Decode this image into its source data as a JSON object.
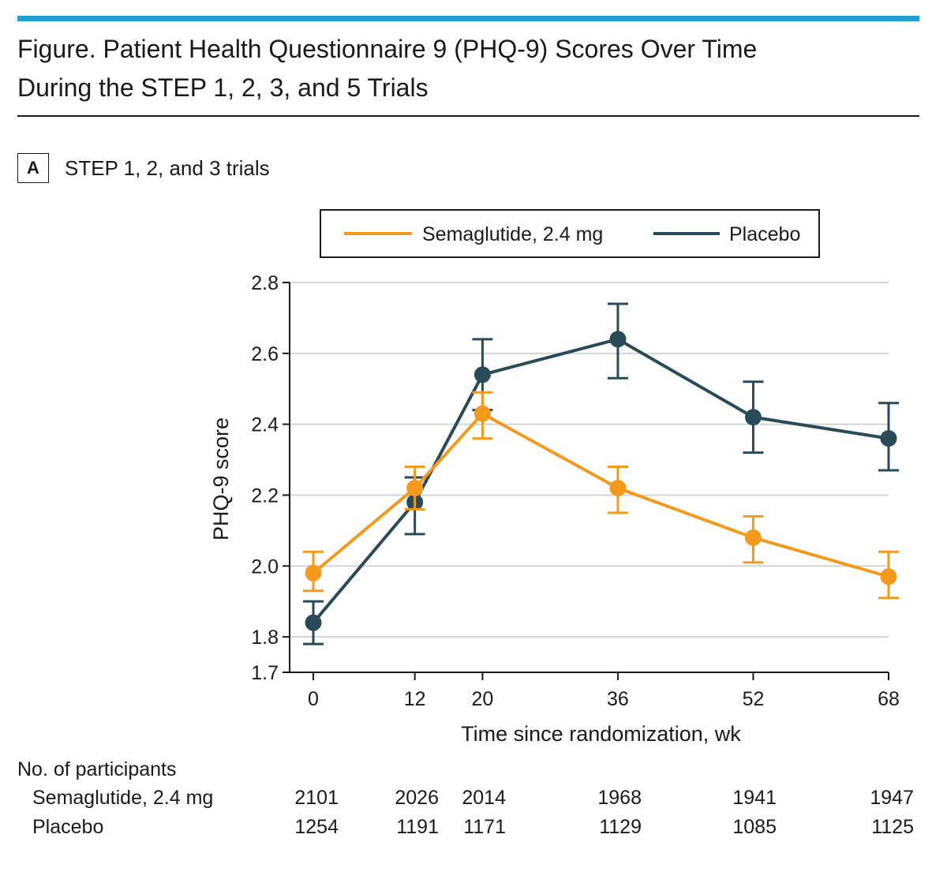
{
  "figure": {
    "title_line1": "Figure. Patient Health Questionnaire 9 (PHQ-9) Scores Over Time",
    "title_line2": "During the STEP 1, 2, 3, and 5 Trials"
  },
  "panel": {
    "letter": "A",
    "label": "STEP 1, 2, and 3 trials"
  },
  "colors": {
    "semaglutide": "#f39a1e",
    "placebo": "#2b4a58",
    "accent_rule": "#1f9fd0"
  },
  "chart_data": {
    "type": "line",
    "title": "",
    "xlabel": "Time since randomization, wk",
    "ylabel": "PHQ-9 score",
    "x": [
      0,
      12,
      20,
      36,
      52,
      68
    ],
    "x_tick_labels": [
      "0",
      "12",
      "20",
      "36",
      "52",
      "68"
    ],
    "y_ticks": [
      1.7,
      1.8,
      2.0,
      2.2,
      2.4,
      2.6,
      2.8
    ],
    "y_tick_labels": [
      "1.7",
      "1.8",
      "2.0",
      "2.2",
      "2.4",
      "2.6",
      "2.8"
    ],
    "xlim": [
      0,
      68
    ],
    "ylim": [
      1.7,
      2.8
    ],
    "grid": true,
    "legend_position": "top",
    "series": [
      {
        "name": "Semaglutide, 2.4 mg",
        "color": "#f39a1e",
        "values": [
          1.98,
          2.22,
          2.43,
          2.22,
          2.08,
          1.97
        ],
        "lower": [
          1.93,
          2.16,
          2.36,
          2.15,
          2.01,
          1.91
        ],
        "upper": [
          2.04,
          2.28,
          2.49,
          2.28,
          2.14,
          2.04
        ]
      },
      {
        "name": "Placebo",
        "color": "#2b4a58",
        "values": [
          1.84,
          2.18,
          2.54,
          2.64,
          2.42,
          2.36
        ],
        "lower": [
          1.78,
          2.09,
          2.44,
          2.53,
          2.32,
          2.27
        ],
        "upper": [
          1.9,
          2.25,
          2.64,
          2.74,
          2.52,
          2.46
        ]
      }
    ],
    "participants": {
      "heading": "No. of participants",
      "rows": [
        {
          "label": "Semaglutide, 2.4 mg",
          "values": [
            "2101",
            "2026",
            "2014",
            "1968",
            "1941",
            "1947"
          ]
        },
        {
          "label": "Placebo",
          "values": [
            "1254",
            "1191",
            "1171",
            "1129",
            "1085",
            "1125"
          ]
        }
      ]
    }
  }
}
